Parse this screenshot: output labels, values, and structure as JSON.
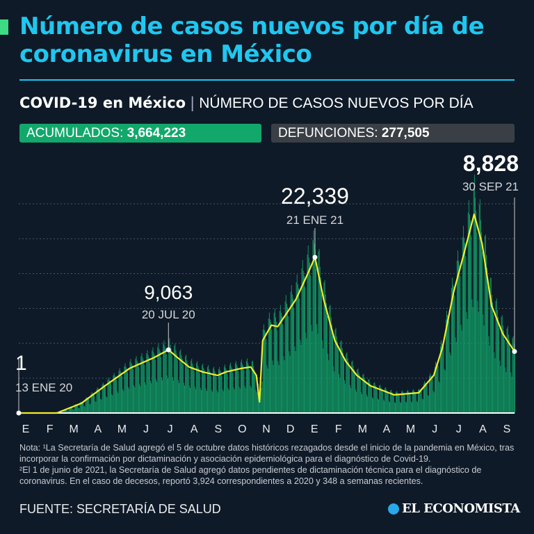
{
  "header": {
    "title": "Número de casos nuevos por día de coronavirus en México",
    "brand": "COVID-19 en México",
    "subtitle": "NÚMERO DE CASOS NUEVOS POR DÍA"
  },
  "stats": {
    "cumulative_label": "ACUMULADOS:",
    "cumulative_value": "3,664,223",
    "deaths_label": "DEFUNCIONES:",
    "deaths_value": "277,505"
  },
  "colors": {
    "title": "#1fc7f0",
    "bars": "#12a86b",
    "line": "#f2ee2a",
    "background": "#0f1a28"
  },
  "chart_data": {
    "type": "bar",
    "title": "",
    "x_range": [
      "2020-01-13",
      "2021-09-30"
    ],
    "month_labels": [
      "E",
      "F",
      "M",
      "A",
      "M",
      "J",
      "J",
      "A",
      "S",
      "O",
      "N",
      "D",
      "E",
      "F",
      "M",
      "A",
      "M",
      "J",
      "J",
      "A",
      "S"
    ],
    "grid": true,
    "smoothed_series": [
      [
        "2020-01-13",
        0
      ],
      [
        "2020-03-01",
        0
      ],
      [
        "2020-04-01",
        1400
      ],
      [
        "2020-05-01",
        3900
      ],
      [
        "2020-06-01",
        6400
      ],
      [
        "2020-07-01",
        7900
      ],
      [
        "2020-07-20",
        9063
      ],
      [
        "2020-08-01",
        7900
      ],
      [
        "2020-08-15",
        6600
      ],
      [
        "2020-09-01",
        5900
      ],
      [
        "2020-09-20",
        5400
      ],
      [
        "2020-10-01",
        5900
      ],
      [
        "2020-10-20",
        6400
      ],
      [
        "2020-11-01",
        6600
      ],
      [
        "2020-11-08",
        5400
      ],
      [
        "2020-11-12",
        1600
      ],
      [
        "2020-11-16",
        10400
      ],
      [
        "2020-11-27",
        12600
      ],
      [
        "2020-12-05",
        12400
      ],
      [
        "2020-12-28",
        16300
      ],
      [
        "2021-01-10",
        19500
      ],
      [
        "2021-01-21",
        22339
      ],
      [
        "2021-02-01",
        16300
      ],
      [
        "2021-02-15",
        10400
      ],
      [
        "2021-03-01",
        7400
      ],
      [
        "2021-03-15",
        5400
      ],
      [
        "2021-04-01",
        3900
      ],
      [
        "2021-05-01",
        2600
      ],
      [
        "2021-06-01",
        2900
      ],
      [
        "2021-06-20",
        5400
      ],
      [
        "2021-07-01",
        9400
      ],
      [
        "2021-07-15",
        17300
      ],
      [
        "2021-07-28",
        22800
      ],
      [
        "2021-08-10",
        28500
      ],
      [
        "2021-08-20",
        24300
      ],
      [
        "2021-09-01",
        15400
      ],
      [
        "2021-09-15",
        11400
      ],
      [
        "2021-09-30",
        8828
      ]
    ],
    "annotations": [
      {
        "date": "2020-01-13",
        "value_label": "1",
        "date_label": "13 ENE 20"
      },
      {
        "date": "2020-07-20",
        "value_label": "9,063",
        "date_label": "20 JUL 20"
      },
      {
        "date": "2021-01-21",
        "value_label": "22,339",
        "date_label": "21 ENE 21"
      },
      {
        "date": "2021-09-30",
        "value_label": "8,828",
        "date_label": "30 SEP 21"
      }
    ]
  },
  "notes": {
    "line1": "Nota: ¹La Secretaría de Salud agregó el 5 de octubre datos históricos rezagados desde el inicio de la pandemia en México, tras incorporar la confirmación por dictaminación y asociación epidemiológica para el diagnóstico de Covid-19.",
    "line2": "²El 1 de junio de 2021, la Secretaría de Salud agregó datos pendientes de dictaminación técnica para el diagnóstico de coronavirus. En el caso de decesos, reportó 3,924 correspondientes a 2020 y 348 a semanas recientes."
  },
  "footer": {
    "source": "FUENTE: SECRETARÍA DE SALUD",
    "logo": "EL ECONOMISTA"
  }
}
